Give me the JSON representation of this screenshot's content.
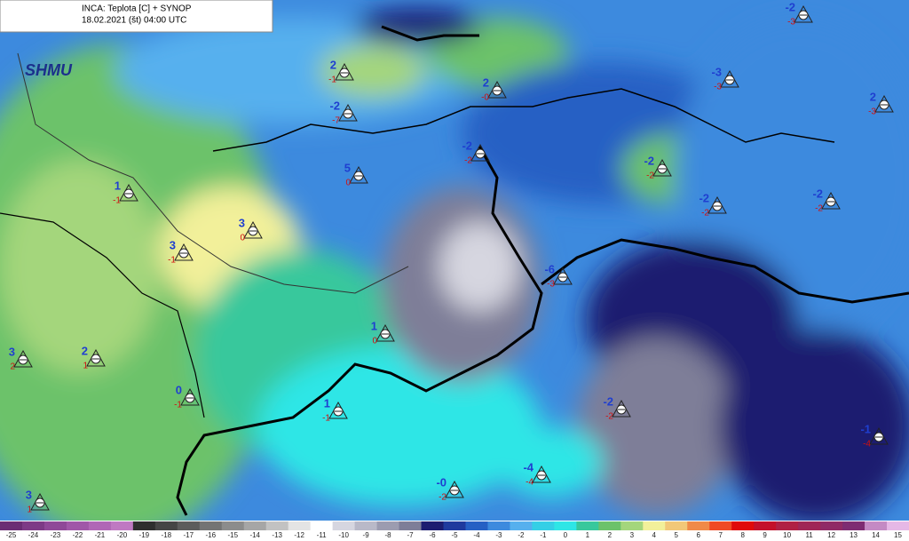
{
  "header": {
    "title": "INCA: Teplota [C] + SYNOP",
    "time": "18.02.2021 (št) 04:00 UTC"
  },
  "logo": "SHMU",
  "colorbar": {
    "values": [
      -25,
      -24,
      -23,
      -22,
      -21,
      -20,
      -19,
      -18,
      -17,
      -16,
      -15,
      -14,
      -13,
      -12,
      -11,
      -10,
      -9,
      -8,
      -7,
      -6,
      -5,
      -4,
      -3,
      -2,
      -1,
      0,
      1,
      2,
      3,
      4,
      5,
      6,
      7,
      8,
      9,
      10,
      11,
      12,
      13,
      14,
      15
    ],
    "colors": [
      "#6b2d74",
      "#7d3a86",
      "#8f4898",
      "#a057a8",
      "#b067b6",
      "#bf79c2",
      "#2e2e2e",
      "#454545",
      "#5c5c5c",
      "#747474",
      "#8c8c8c",
      "#a6a6a6",
      "#c2c2c2",
      "#e4e4e4",
      "#ffffff",
      "#d6d6e0",
      "#b9b9c8",
      "#9c9cb0",
      "#7e7e98",
      "#1c1c70",
      "#1f3a9e",
      "#2660c4",
      "#3d8ade",
      "#56b0ee",
      "#35cfe6",
      "#2ee6e6",
      "#38c89c",
      "#6cc26a",
      "#a4d67c",
      "#f2f09a",
      "#f2c878",
      "#f08a48",
      "#f04a24",
      "#e00a0a",
      "#c4102a",
      "#b02044",
      "#a02656",
      "#902a66",
      "#7e2c72",
      "#c48ac4",
      "#e6b8e6"
    ]
  },
  "stations": [
    {
      "temp": "2",
      "dew": "-1"
    },
    {
      "temp": "-2",
      "dew": "-7"
    },
    {
      "temp": "2",
      "dew": "-0"
    },
    {
      "temp": "-3",
      "dew": "-3"
    },
    {
      "temp": "-2",
      "dew": "-3"
    },
    {
      "temp": "2",
      "dew": "-3"
    },
    {
      "temp": "5",
      "dew": "0"
    },
    {
      "temp": "1",
      "dew": "-1"
    },
    {
      "temp": "3",
      "dew": "0"
    },
    {
      "temp": "3",
      "dew": "-1"
    },
    {
      "temp": "-2",
      "dew": "-2"
    },
    {
      "temp": "-2",
      "dew": "-2"
    },
    {
      "temp": "-2",
      "dew": "-2"
    },
    {
      "temp": "-6",
      "dew": "-3"
    },
    {
      "temp": "1",
      "dew": "0"
    },
    {
      "temp": "2",
      "dew": "1"
    },
    {
      "temp": "3",
      "dew": "2"
    },
    {
      "temp": "0",
      "dew": "-1"
    },
    {
      "temp": "1",
      "dew": "-1"
    },
    {
      "temp": "-2",
      "dew": "-2"
    },
    {
      "temp": "-1",
      "dew": "-4"
    },
    {
      "temp": "-4",
      "dew": "-4"
    },
    {
      "temp": "-0",
      "dew": "-2"
    },
    {
      "temp": "3",
      "dew": "1"
    },
    {
      "temp": "-2",
      "dew": "-2"
    }
  ]
}
